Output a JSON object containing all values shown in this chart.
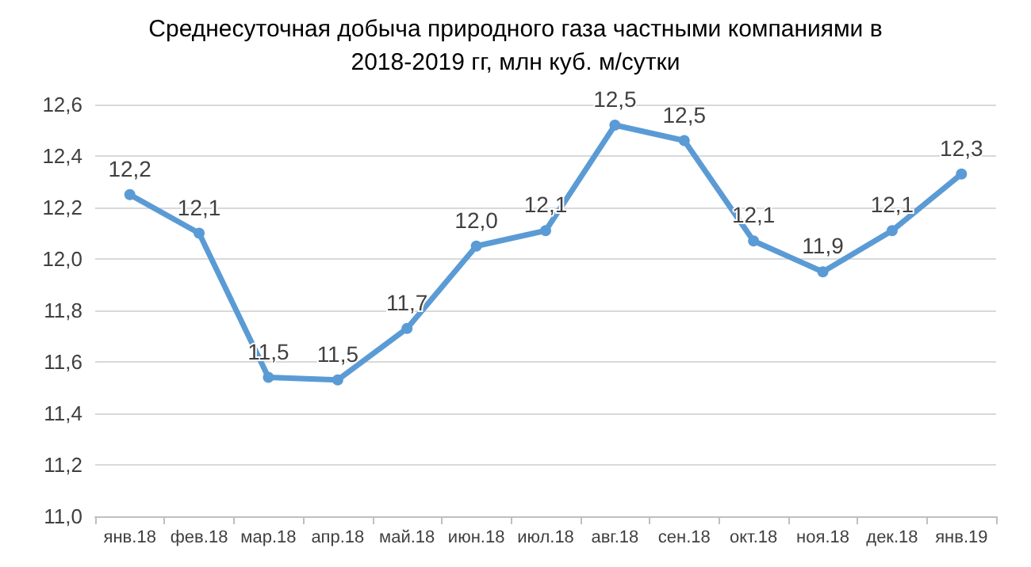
{
  "chart_data": {
    "type": "line",
    "title": "Среднесуточная добыча природного газа частными компаниями в 2018-2019 гг, млн куб. м/сутки",
    "categories": [
      "янв.18",
      "фев.18",
      "мар.18",
      "апр.18",
      "май.18",
      "июн.18",
      "июл.18",
      "авг.18",
      "сен.18",
      "окт.18",
      "ноя.18",
      "дек.18",
      "янв.19"
    ],
    "series": [
      {
        "color": "#5b9bd5",
        "values": [
          12.25,
          12.1,
          11.54,
          11.53,
          11.73,
          12.05,
          12.11,
          12.52,
          12.46,
          12.07,
          11.95,
          12.11,
          12.33
        ],
        "value_labels": [
          "12,2",
          "12,1",
          "11,5",
          "11,5",
          "11,7",
          "12,0",
          "12,1",
          "12,5",
          "12,5",
          "12,1",
          "11,9",
          "12,1",
          "12,3"
        ]
      }
    ],
    "ylim": [
      11.0,
      12.6
    ],
    "yticks": [
      {
        "value": 11.0,
        "label": "11,0"
      },
      {
        "value": 11.2,
        "label": "11,2"
      },
      {
        "value": 11.4,
        "label": "11,4"
      },
      {
        "value": 11.6,
        "label": "11,6"
      },
      {
        "value": 11.8,
        "label": "11,8"
      },
      {
        "value": 12.0,
        "label": "12,0"
      },
      {
        "value": 12.2,
        "label": "12,2"
      },
      {
        "value": 12.4,
        "label": "12,4"
      },
      {
        "value": 12.6,
        "label": "12,6"
      }
    ],
    "grid": "y",
    "marker": "circle",
    "line_style": "solid"
  }
}
